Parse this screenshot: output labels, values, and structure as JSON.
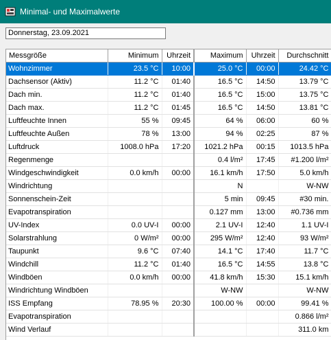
{
  "window": {
    "title": "Minimal- und Maximalwerte",
    "icon": "app-icon"
  },
  "date_field": {
    "value": "Donnerstag, 23.09.2021"
  },
  "table": {
    "columns": [
      "Messgröße",
      "Minimum",
      "Uhrzeit",
      "Maximum",
      "Uhrzeit",
      "Durchschnitt"
    ],
    "selected_row": 0,
    "rows": [
      [
        "Wohnzimmer",
        "23.5 °C",
        "10:00",
        "25.0 °C",
        "00:00",
        "24.42 °C"
      ],
      [
        "Dachsensor (Aktiv)",
        "11.2 °C",
        "01:40",
        "16.5 °C",
        "14:50",
        "13.79 °C"
      ],
      [
        "Dach min.",
        "11.2 °C",
        "01:40",
        "16.5 °C",
        "15:00",
        "13.75 °C"
      ],
      [
        "Dach max.",
        "11.2 °C",
        "01:45",
        "16.5 °C",
        "14:50",
        "13.81 °C"
      ],
      [
        "Luftfeuchte Innen",
        "55 %",
        "09:45",
        "64 %",
        "06:00",
        "60 %"
      ],
      [
        "Luftfeuchte Außen",
        "78 %",
        "13:00",
        "94 %",
        "02:25",
        "87 %"
      ],
      [
        "Luftdruck",
        "1008.0 hPa",
        "17:20",
        "1021.2 hPa",
        "00:15",
        "1013.5 hPa"
      ],
      [
        "Regenmenge",
        "",
        "",
        "0.4 l/m²",
        "17:45",
        "#1.200 l/m²"
      ],
      [
        "Windgeschwindigkeit",
        "0.0 km/h",
        "00:00",
        "16.1 km/h",
        "17:50",
        "5.0 km/h"
      ],
      [
        "Windrichtung",
        "",
        "",
        "N",
        "",
        "W-NW"
      ],
      [
        "Sonnenschein-Zeit",
        "",
        "",
        "5 min",
        "09:45",
        "#30 min."
      ],
      [
        "Evapotranspiration",
        "",
        "",
        "0.127 mm",
        "13:00",
        "#0.736 mm"
      ],
      [
        "UV-Index",
        "0.0 UV-I",
        "00:00",
        "2.1 UV-I",
        "12:40",
        "1.1 UV-I"
      ],
      [
        "Solarstrahlung",
        "0 W/m²",
        "00:00",
        "295 W/m²",
        "12:40",
        "93 W/m²"
      ],
      [
        "Taupunkt",
        "9.6 °C",
        "07:40",
        "14.1 °C",
        "17:40",
        "11.7 °C"
      ],
      [
        "Windchill",
        "11.2 °C",
        "01:40",
        "16.5 °C",
        "14:55",
        "13.8 °C"
      ],
      [
        "Windböen",
        "0.0 km/h",
        "00:00",
        "41.8 km/h",
        "15:30",
        "15.1 km/h"
      ],
      [
        "Windrichtung Windböen",
        "",
        "",
        "W-NW",
        "",
        "W-NW"
      ],
      [
        "ISS Empfang",
        "78.95 %",
        "20:30",
        "100.00 %",
        "00:00",
        "99.41 %"
      ],
      [
        "Evapotranspiration",
        "",
        "",
        "",
        "",
        "0.866 l/m²"
      ],
      [
        "Wind Verlauf",
        "",
        "",
        "",
        "",
        "311.0 km"
      ]
    ]
  }
}
